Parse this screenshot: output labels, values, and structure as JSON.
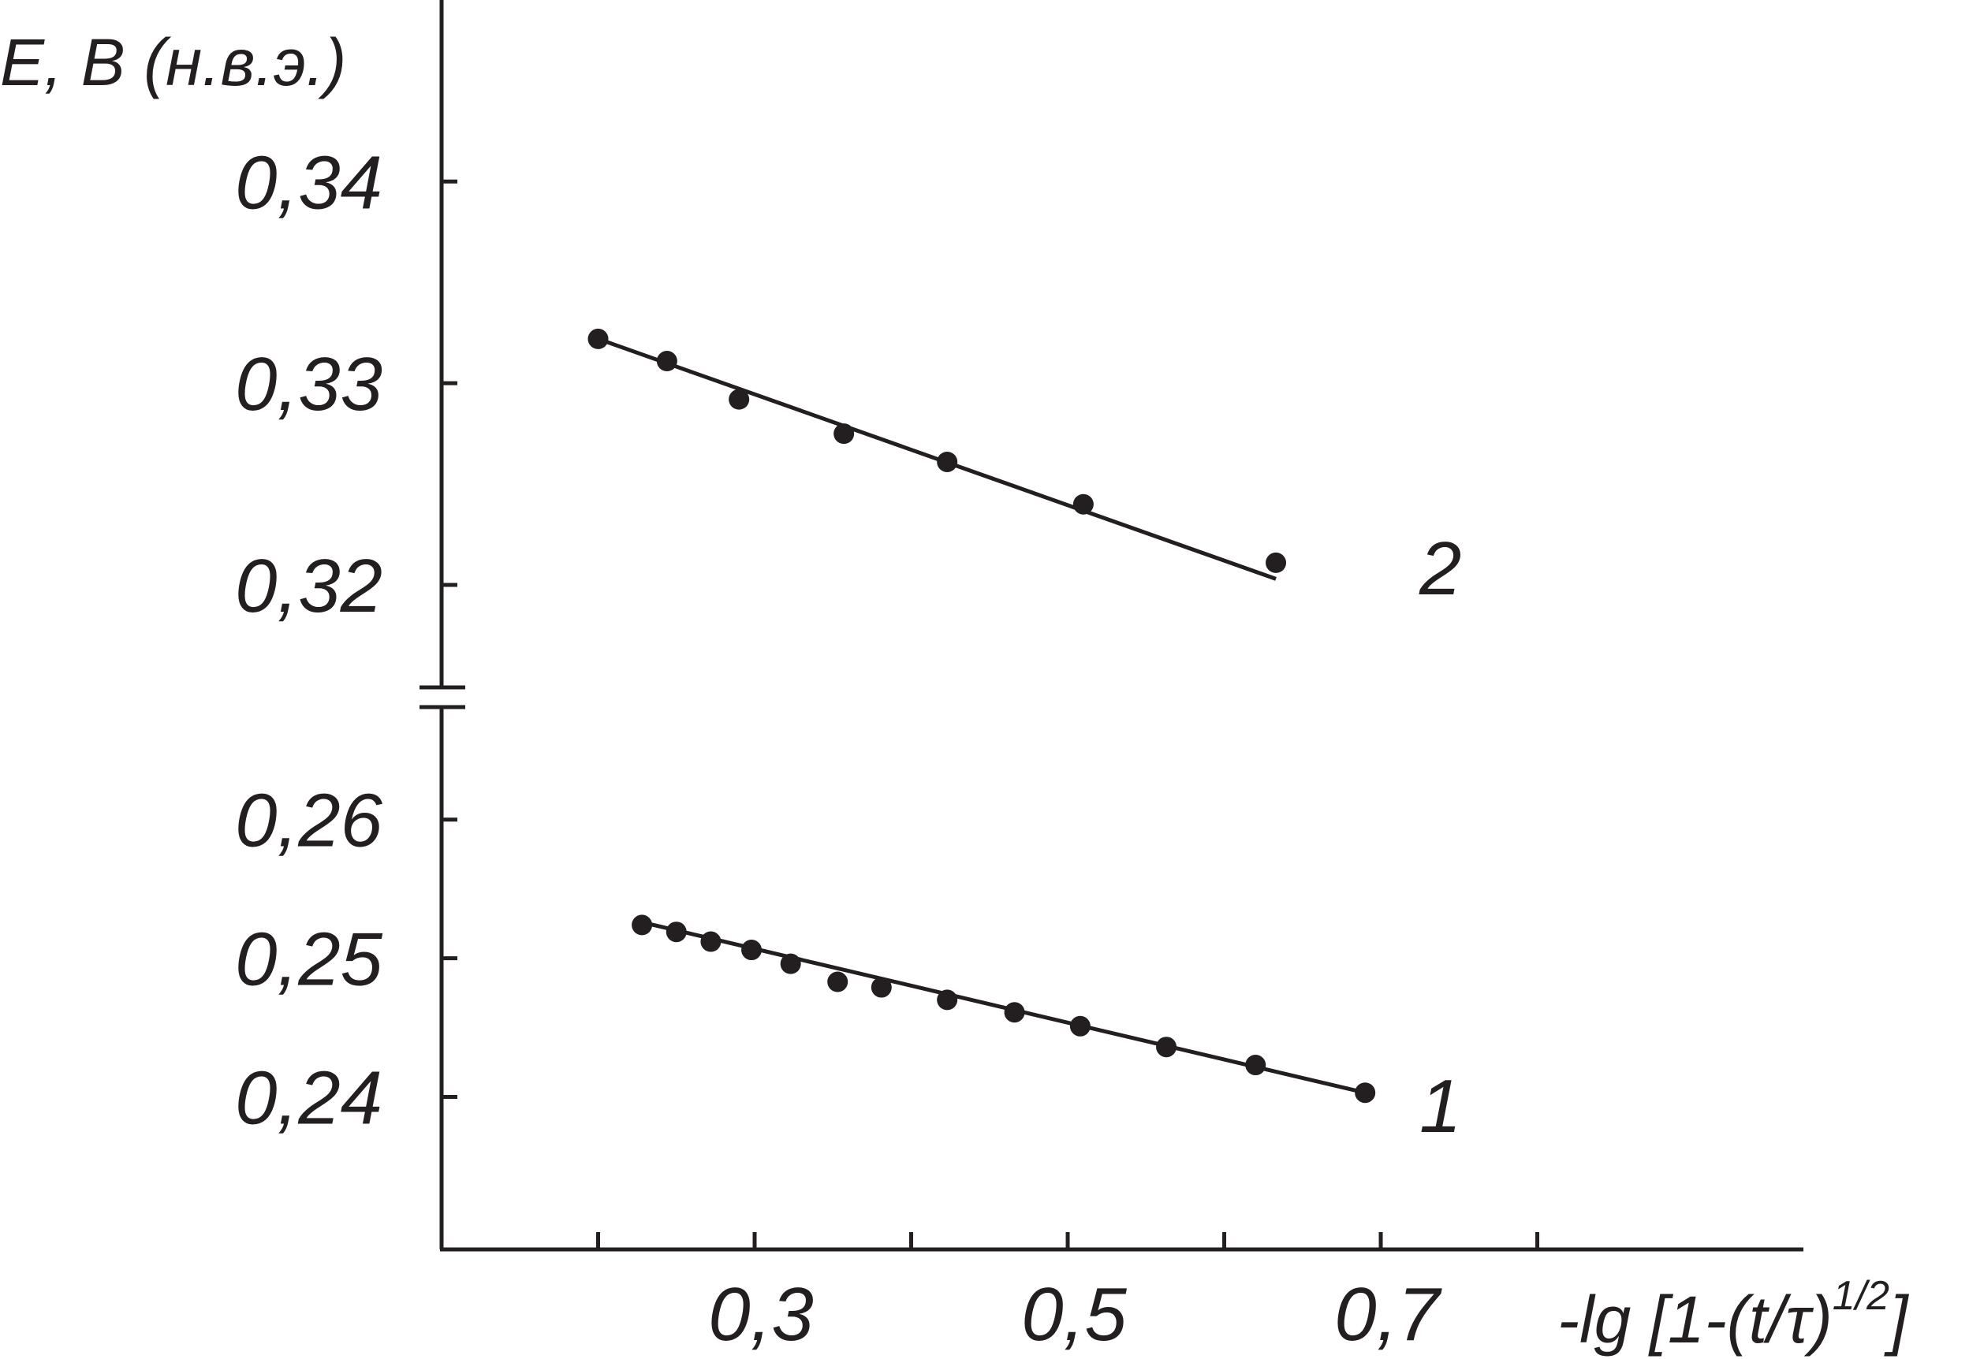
{
  "chart_data": {
    "type": "scatter",
    "ylabel": "E, B (н.в.э.)",
    "xlabel_parts": {
      "prefix": "-lg [1-(",
      "t": "t",
      "slash": "/",
      "tau": "τ",
      "close": ")",
      "exponent": "1/2",
      "end": "]"
    },
    "x_ticks": [
      {
        "value": 0.2,
        "label": ""
      },
      {
        "value": 0.3,
        "label": "0,3"
      },
      {
        "value": 0.4,
        "label": ""
      },
      {
        "value": 0.5,
        "label": "0,5"
      },
      {
        "value": 0.6,
        "label": ""
      },
      {
        "value": 0.7,
        "label": "0,7"
      },
      {
        "value": 0.8,
        "label": ""
      }
    ],
    "xlim": [
      0.1,
      0.97
    ],
    "y_axis_broken": true,
    "y_segments": [
      {
        "ylim": [
          0.315,
          0.349
        ],
        "ticks": [
          {
            "value": 0.34,
            "label": "0,34"
          },
          {
            "value": 0.33,
            "label": "0,33"
          },
          {
            "value": 0.32,
            "label": "0,32"
          }
        ]
      },
      {
        "ylim": [
          0.229,
          0.268
        ],
        "ticks": [
          {
            "value": 0.26,
            "label": "0,26"
          },
          {
            "value": 0.25,
            "label": "0,25"
          },
          {
            "value": 0.24,
            "label": "0,24"
          }
        ]
      }
    ],
    "series": [
      {
        "name": "2",
        "segment": 0,
        "points": [
          {
            "x": 0.2,
            "y": 0.3322
          },
          {
            "x": 0.244,
            "y": 0.3311
          },
          {
            "x": 0.29,
            "y": 0.3292
          },
          {
            "x": 0.357,
            "y": 0.3275
          },
          {
            "x": 0.423,
            "y": 0.3261
          },
          {
            "x": 0.51,
            "y": 0.324
          },
          {
            "x": 0.633,
            "y": 0.3211
          }
        ],
        "fit": [
          {
            "x": 0.2,
            "y": 0.3322
          },
          {
            "x": 0.633,
            "y": 0.3203
          }
        ]
      },
      {
        "name": "1",
        "segment": 1,
        "points": [
          {
            "x": 0.228,
            "y": 0.2524
          },
          {
            "x": 0.25,
            "y": 0.2519
          },
          {
            "x": 0.272,
            "y": 0.2512
          },
          {
            "x": 0.298,
            "y": 0.2506
          },
          {
            "x": 0.323,
            "y": 0.2496
          },
          {
            "x": 0.353,
            "y": 0.2483
          },
          {
            "x": 0.381,
            "y": 0.2479
          },
          {
            "x": 0.423,
            "y": 0.247
          },
          {
            "x": 0.466,
            "y": 0.2461
          },
          {
            "x": 0.508,
            "y": 0.2451
          },
          {
            "x": 0.563,
            "y": 0.2436
          },
          {
            "x": 0.62,
            "y": 0.2423
          },
          {
            "x": 0.69,
            "y": 0.2403
          }
        ],
        "fit": [
          {
            "x": 0.228,
            "y": 0.2526
          },
          {
            "x": 0.69,
            "y": 0.2403
          }
        ]
      }
    ]
  }
}
